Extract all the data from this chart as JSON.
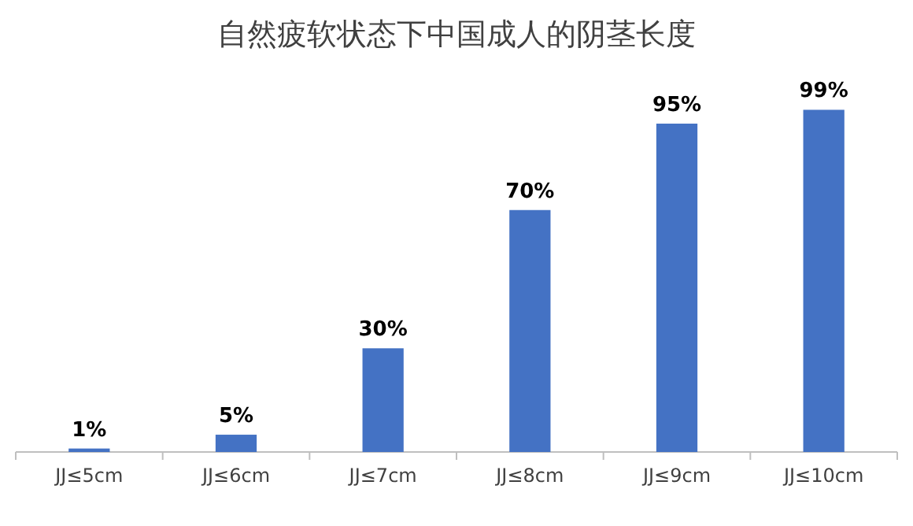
{
  "chart_data": {
    "type": "bar",
    "title": "自然疲软状态下中国成人的阴茎长度",
    "categories": [
      "JJ≤5cm",
      "JJ≤6cm",
      "JJ≤7cm",
      "JJ≤8cm",
      "JJ≤9cm",
      "JJ≤10cm"
    ],
    "values": [
      1,
      5,
      30,
      70,
      95,
      99
    ],
    "value_labels": [
      "1%",
      "5%",
      "30%",
      "70%",
      "95%",
      "99%"
    ],
    "color": "#4472c4"
  }
}
